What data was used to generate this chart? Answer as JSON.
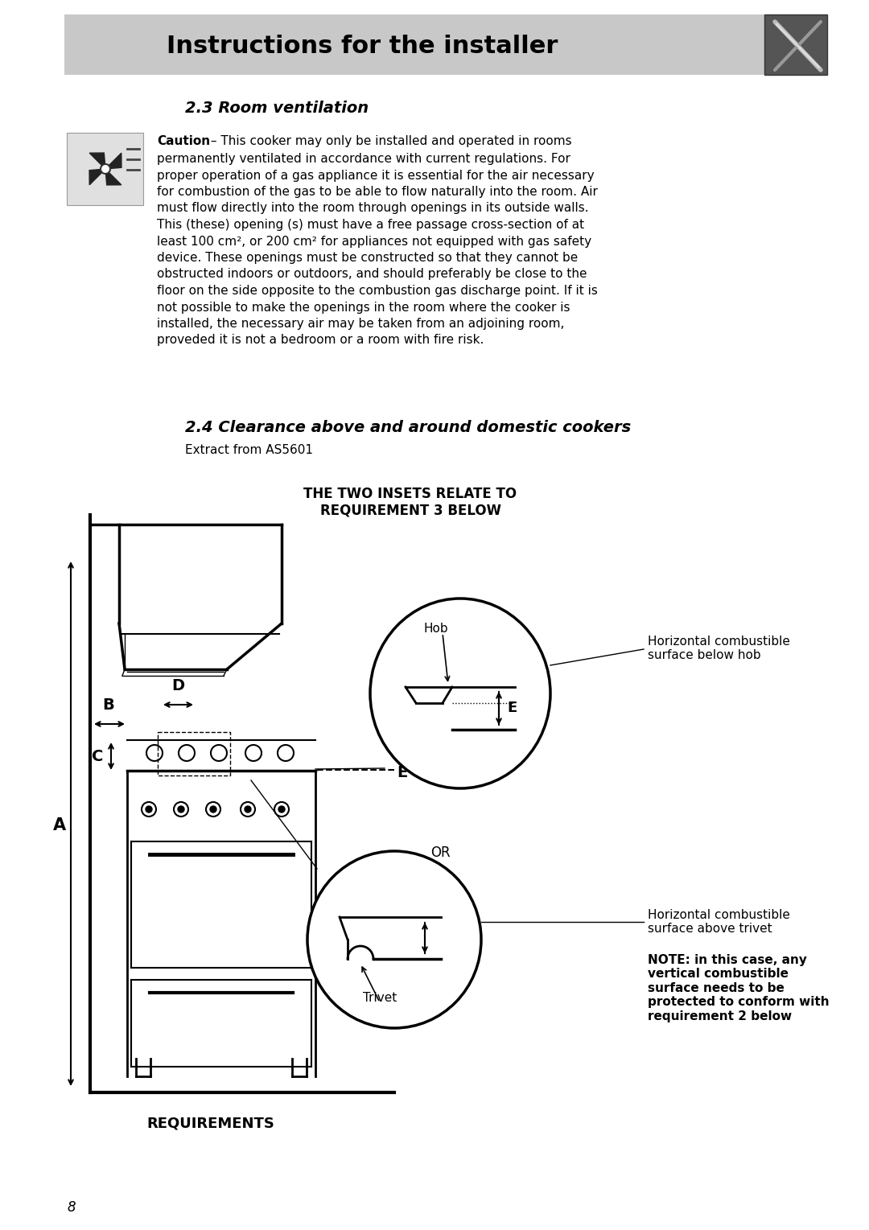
{
  "header_text": "Instructions for the installer",
  "header_bg": "#c8c8c8",
  "header_fontsize": 22,
  "section1_title": "2.3 Room ventilation",
  "caution_bold": "Caution",
  "caution_text": " – This cooker may only be installed and operated in rooms permanently ventilated in accordance with current regulations. For proper operation of a gas appliance it is essential for the air necessary for combustion of the gas to be able to flow naturally into the room. Air must flow directly into the room through openings in its outside walls. This (these) opening (s) must have a free passage cross-section of at least 100 cm², or 200 cm² for appliances not equipped with gas safety device. These openings must be constructed so that they cannot be obstructed indoors or outdoors, and should preferably be close to the floor on the side opposite to the combustion gas discharge point. If it is not possible to make the openings in the room where the cooker is installed, the necessary air may be taken from an adjoining room, proveded it is not a bedroom or a room with fire risk.",
  "section2_title": "2.4 Clearance above and around domestic cookers",
  "extract_text": "Extract from AS5601",
  "inset_label": "THE TWO INSETS RELATE TO\nREQUIREMENT 3 BELOW",
  "hob_label": "Hob",
  "horizontal_combustible_hob": "Horizontal combustible\nsurface below hob",
  "or_label": "OR",
  "trivet_label": "Trivet",
  "horizontal_combustible_trivet": "Horizontal combustible\nsurface above trivet",
  "note_text": "NOTE: in this case, any\nvertical combustible\nsurface needs to be\nprotected to conform with\nrequirement 2 below",
  "requirements_label": "REQUIREMENTS",
  "page_number": "8",
  "bg_color": "#ffffff",
  "text_color": "#000000",
  "caution_lines": [
    "permanently ventilated in accordance with current regulations. For",
    "proper operation of a gas appliance it is essential for the air necessary",
    "for combustion of the gas to be able to flow naturally into the room. Air",
    "must flow directly into the room through openings in its outside walls.",
    "This (these) opening (s) must have a free passage cross-section of at",
    "least 100 cm², or 200 cm² for appliances not equipped with gas safety",
    "device. These openings must be constructed so that they cannot be",
    "obstructed indoors or outdoors, and should preferably be close to the",
    "floor on the side opposite to the combustion gas discharge point. If it is",
    "not possible to make the openings in the room where the cooker is",
    "installed, the necessary air may be taken from an adjoining room,",
    "proveded it is not a bedroom or a room with fire risk."
  ]
}
